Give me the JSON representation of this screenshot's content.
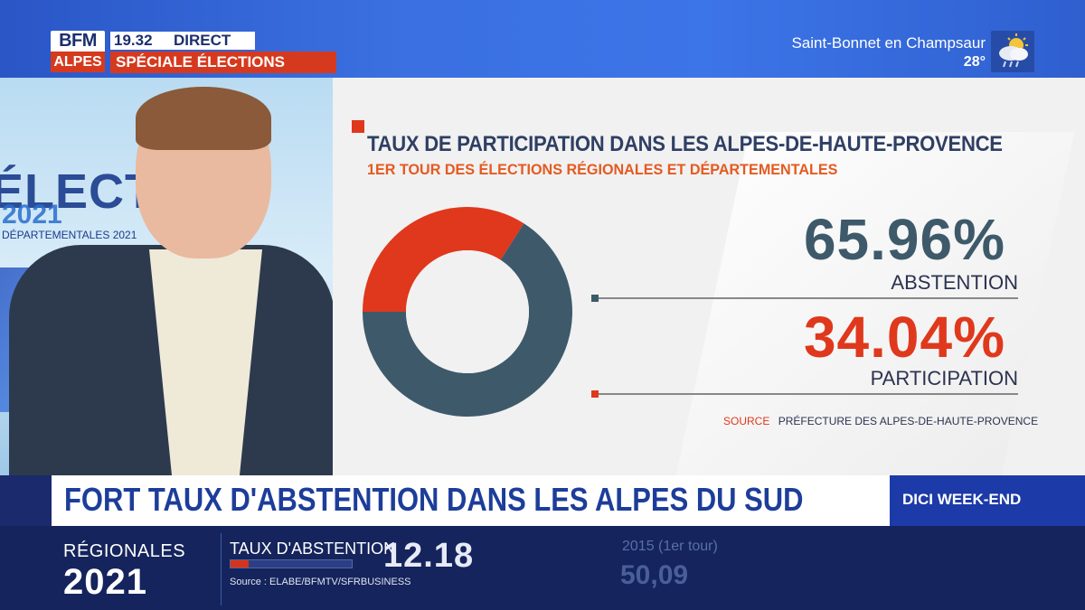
{
  "header": {
    "logo_top": "BFM",
    "logo_bottom": "ALPES",
    "time": "19.32",
    "live_label": "DIRECT",
    "special_label": "SPÉCIALE ÉLECTIONS",
    "weather": {
      "city": "Saint-Bonnet en Champsaur",
      "temperature": "28°",
      "icon": "partly-cloudy-rain-icon"
    }
  },
  "studio": {
    "background_word": "ÉLECTI",
    "background_year": "2021",
    "background_sub": "DÉPARTEMENTALES 2021"
  },
  "graphic": {
    "title": "TAUX DE PARTICIPATION DANS LES ALPES-DE-HAUTE-PROVENCE",
    "subtitle": "1ER TOUR DES ÉLECTIONS RÉGIONALES ET DÉPARTEMENTALES",
    "abstention_value": "65.96%",
    "abstention_label": "ABSTENTION",
    "participation_value": "34.04%",
    "participation_label": "PARTICIPATION",
    "source_label": "SOURCE",
    "source_value": "PRÉFECTURE DES ALPES-DE-HAUTE-PROVENCE",
    "colors": {
      "abstention": "#3e5a6a",
      "participation": "#e0381c",
      "title": "#2f3f64",
      "subtitle": "#e45a20"
    },
    "donut": [
      {
        "name": "abstention",
        "value": 65.96
      },
      {
        "name": "participation",
        "value": 34.04
      }
    ]
  },
  "headline": {
    "text": "FORT TAUX D'ABSTENTION DANS LES ALPES DU SUD",
    "show": "DICI WEEK-END"
  },
  "ticker": {
    "election_label": "RÉGIONALES",
    "election_year": "2021",
    "abstention_label": "TAUX D'ABSTENTION",
    "time_overlay": "12.18",
    "source": "Source : ELABE/BFMTV/SFRBUSINESS",
    "prev_label": "2015 (1er tour)",
    "prev_value": "50,09"
  }
}
